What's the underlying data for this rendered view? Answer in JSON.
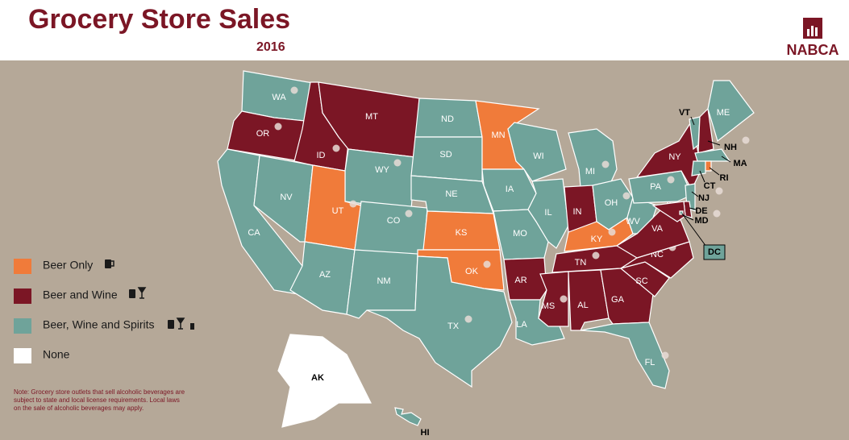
{
  "header": {
    "title": "Grocery Store Sales",
    "subtitle": "2016",
    "logo": "NABCA"
  },
  "legend": [
    {
      "label": "Beer Only",
      "color": "#f07b3a"
    },
    {
      "label": "Beer and Wine",
      "color": "#7b1625"
    },
    {
      "label": "Beer, Wine and Spirits",
      "color": "#6fa39a"
    },
    {
      "label": "None",
      "color": "#ffffff"
    }
  ],
  "note": "Note: Grocery store outlets that sell alcoholic beverages are subject to state and local license requirements. Local laws on the sale of alcoholic beverages may apply.",
  "states": [
    {
      "label": "WA",
      "color": "#6fa39a",
      "dot": true
    },
    {
      "label": "OR",
      "color": "#7b1625",
      "dot": true
    },
    {
      "label": "CA",
      "color": "#6fa39a",
      "dot": false
    },
    {
      "label": "NV",
      "color": "#6fa39a",
      "dot": false
    },
    {
      "label": "ID",
      "color": "#7b1625",
      "dot": true
    },
    {
      "label": "MT",
      "color": "#7b1625",
      "dot": false
    },
    {
      "label": "WY",
      "color": "#6fa39a",
      "dot": true
    },
    {
      "label": "UT",
      "color": "#f07b3a",
      "dot": true
    },
    {
      "label": "CO",
      "color": "#6fa39a",
      "dot": true
    },
    {
      "label": "AZ",
      "color": "#6fa39a",
      "dot": false
    },
    {
      "label": "NM",
      "color": "#6fa39a",
      "dot": false
    },
    {
      "label": "ND",
      "color": "#6fa39a",
      "dot": false
    },
    {
      "label": "SD",
      "color": "#6fa39a",
      "dot": false
    },
    {
      "label": "NE",
      "color": "#6fa39a",
      "dot": false
    },
    {
      "label": "KS",
      "color": "#f07b3a",
      "dot": false
    },
    {
      "label": "OK",
      "color": "#f07b3a",
      "dot": true
    },
    {
      "label": "TX",
      "color": "#6fa39a",
      "dot": true
    },
    {
      "label": "MN",
      "color": "#f07b3a",
      "dot": true
    },
    {
      "label": "IA",
      "color": "#6fa39a",
      "dot": false
    },
    {
      "label": "MO",
      "color": "#6fa39a",
      "dot": false
    },
    {
      "label": "AR",
      "color": "#7b1625",
      "dot": false
    },
    {
      "label": "LA",
      "color": "#6fa39a",
      "dot": false
    },
    {
      "label": "WI",
      "color": "#6fa39a",
      "dot": false
    },
    {
      "label": "IL",
      "color": "#6fa39a",
      "dot": false
    },
    {
      "label": "MI",
      "color": "#6fa39a",
      "dot": true
    },
    {
      "label": "IN",
      "color": "#7b1625",
      "dot": false
    },
    {
      "label": "OH",
      "color": "#6fa39a",
      "dot": true
    },
    {
      "label": "KY",
      "color": "#f07b3a",
      "dot": true
    },
    {
      "label": "TN",
      "color": "#7b1625",
      "dot": true
    },
    {
      "label": "MS",
      "color": "#7b1625",
      "dot": true
    },
    {
      "label": "AL",
      "color": "#7b1625",
      "dot": false
    },
    {
      "label": "GA",
      "color": "#7b1625",
      "dot": false
    },
    {
      "label": "FL",
      "color": "#6fa39a",
      "dot": true
    },
    {
      "label": "SC",
      "color": "#7b1625",
      "dot": false
    },
    {
      "label": "NC",
      "color": "#7b1625",
      "dot": true
    },
    {
      "label": "VA",
      "color": "#7b1625",
      "dot": false
    },
    {
      "label": "WV",
      "color": "#6fa39a",
      "dot": false
    },
    {
      "label": "PA",
      "color": "#6fa39a",
      "dot": true
    },
    {
      "label": "NY",
      "color": "#7b1625",
      "dot": false
    },
    {
      "label": "VT",
      "color": "#6fa39a",
      "dot": false
    },
    {
      "label": "NH",
      "color": "#7b1625",
      "dot": true
    },
    {
      "label": "ME",
      "color": "#6fa39a",
      "dot": false
    },
    {
      "label": "MA",
      "color": "#6fa39a",
      "dot": false
    },
    {
      "label": "CT",
      "color": "#6fa39a",
      "dot": false
    },
    {
      "label": "RI",
      "color": "#f07b3a",
      "dot": false
    },
    {
      "label": "NJ",
      "color": "#6fa39a",
      "dot": true
    },
    {
      "label": "DE",
      "color": "#7b1625",
      "dot": false
    },
    {
      "label": "MD",
      "color": "#7b1625",
      "dot": true
    },
    {
      "label": "DC",
      "color": "#6fa39a",
      "dot": false
    },
    {
      "label": "AK",
      "color": "#ffffff",
      "dot": false
    },
    {
      "label": "HI",
      "color": "#6fa39a",
      "dot": false
    }
  ]
}
